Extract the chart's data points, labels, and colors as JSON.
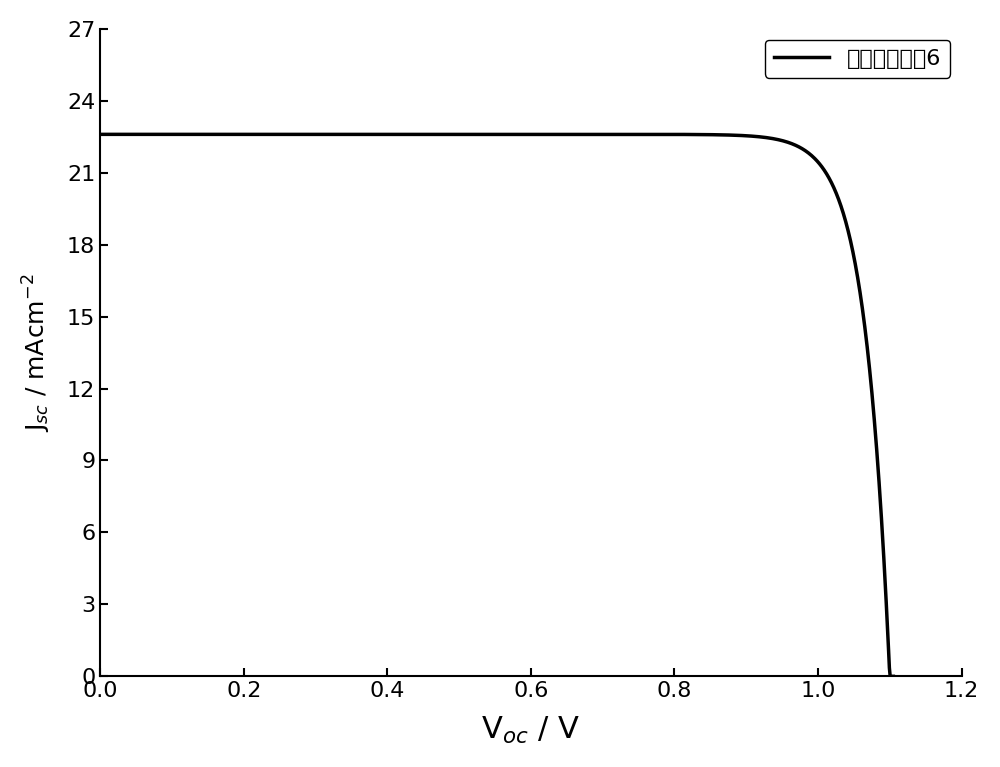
{
  "title": "",
  "xlabel": "V$_{oc}$ / V",
  "ylabel": "J$_{sc}$ / mAcm$^{-2}$",
  "xlim": [
    0,
    1.2
  ],
  "ylim": [
    0,
    27
  ],
  "xticks": [
    0.0,
    0.2,
    0.4,
    0.6,
    0.8,
    1.0,
    1.2
  ],
  "yticks": [
    0,
    3,
    6,
    9,
    12,
    15,
    18,
    21,
    24,
    27
  ],
  "line_color": "#000000",
  "line_width": 2.5,
  "legend_label": "空穴传输材料6",
  "Jsc": 22.6,
  "Voc": 1.1,
  "background_color": "#ffffff",
  "xlabel_fontsize": 22,
  "ylabel_fontsize": 18,
  "tick_fontsize": 16,
  "legend_fontsize": 16
}
